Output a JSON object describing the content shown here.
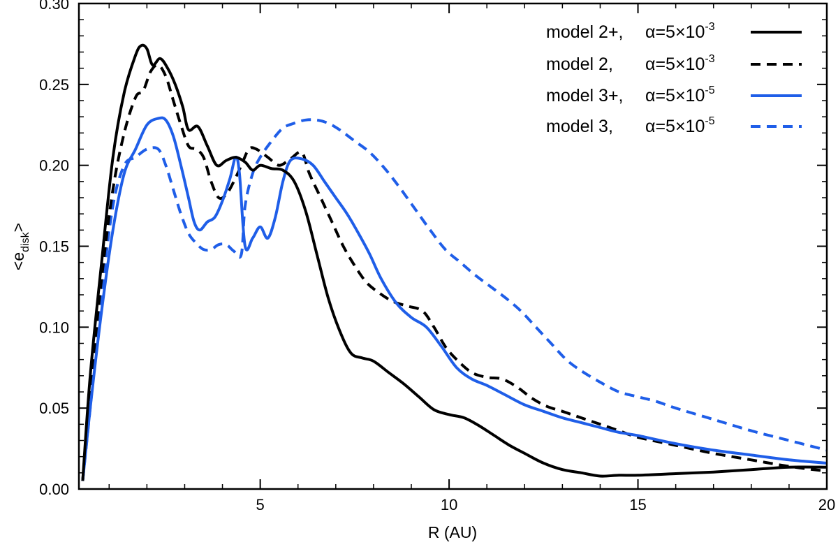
{
  "chart_data": {
    "type": "line",
    "title": "",
    "xlabel": "R (AU)",
    "ylabel_parts": {
      "open": "<e",
      "sub": "disk",
      "close": ">"
    },
    "xlim": [
      0.2,
      20
    ],
    "ylim": [
      0,
      0.3
    ],
    "x_ticks": [
      5,
      10,
      15,
      20
    ],
    "x_tick_labels": [
      "5",
      "10",
      "15",
      "20"
    ],
    "y_ticks": [
      0,
      0.05,
      0.1,
      0.15,
      0.2,
      0.25,
      0.3
    ],
    "y_tick_labels": [
      "0.00",
      "0.05",
      "0.10",
      "0.15",
      "0.20",
      "0.25",
      "0.30"
    ],
    "legend_position": "top-right",
    "series": [
      {
        "name": "model 2+",
        "label": "model 2+,",
        "alpha_text": "α=5×10",
        "alpha_exp": "-3",
        "color": "#000000",
        "style": "solid",
        "x": [
          0.3,
          0.5,
          0.8,
          1.1,
          1.4,
          1.7,
          1.85,
          2.0,
          2.15,
          2.35,
          2.55,
          2.75,
          2.95,
          3.1,
          3.35,
          3.6,
          3.85,
          4.1,
          4.35,
          4.6,
          4.8,
          5.0,
          5.3,
          5.6,
          5.9,
          6.2,
          6.5,
          6.8,
          7.1,
          7.4,
          7.7,
          8.0,
          8.4,
          8.8,
          9.2,
          9.6,
          10.0,
          10.4,
          10.8,
          11.2,
          11.6,
          12.0,
          12.5,
          13.0,
          13.5,
          14.0,
          14.5,
          15.0,
          16.0,
          17.0,
          18.0,
          19.0,
          20.0
        ],
        "y": [
          0.005,
          0.07,
          0.14,
          0.205,
          0.245,
          0.268,
          0.274,
          0.272,
          0.262,
          0.266,
          0.26,
          0.25,
          0.236,
          0.222,
          0.224,
          0.212,
          0.2,
          0.203,
          0.205,
          0.202,
          0.197,
          0.2,
          0.198,
          0.197,
          0.19,
          0.172,
          0.145,
          0.118,
          0.098,
          0.084,
          0.081,
          0.079,
          0.072,
          0.065,
          0.057,
          0.049,
          0.046,
          0.044,
          0.039,
          0.033,
          0.027,
          0.022,
          0.016,
          0.012,
          0.01,
          0.008,
          0.0085,
          0.0085,
          0.0095,
          0.0105,
          0.012,
          0.0135,
          0.0135
        ]
      },
      {
        "name": "model 2",
        "label": "model 2,",
        "alpha_text": "α=5×10",
        "alpha_exp": "-3",
        "color": "#000000",
        "style": "dashed",
        "x": [
          0.3,
          0.5,
          0.8,
          1.1,
          1.4,
          1.7,
          1.9,
          2.1,
          2.3,
          2.5,
          2.7,
          2.9,
          3.1,
          3.3,
          3.5,
          3.7,
          3.9,
          4.1,
          4.3,
          4.5,
          4.7,
          4.9,
          5.2,
          5.5,
          5.8,
          6.1,
          6.3,
          6.6,
          6.9,
          7.2,
          7.5,
          7.8,
          8.1,
          8.5,
          8.9,
          9.3,
          9.6,
          9.9,
          10.2,
          10.6,
          11.0,
          11.4,
          11.8,
          12.2,
          12.6,
          13.0,
          13.5,
          14.0,
          14.5,
          15.0,
          16.0,
          17.0,
          18.0,
          19.0,
          20.0
        ],
        "y": [
          0.005,
          0.06,
          0.13,
          0.185,
          0.22,
          0.242,
          0.246,
          0.258,
          0.262,
          0.255,
          0.24,
          0.225,
          0.212,
          0.21,
          0.205,
          0.19,
          0.18,
          0.182,
          0.19,
          0.2,
          0.21,
          0.21,
          0.205,
          0.2,
          0.204,
          0.208,
          0.195,
          0.18,
          0.165,
          0.15,
          0.138,
          0.128,
          0.122,
          0.116,
          0.113,
          0.11,
          0.1,
          0.088,
          0.08,
          0.072,
          0.069,
          0.068,
          0.063,
          0.056,
          0.051,
          0.048,
          0.044,
          0.04,
          0.036,
          0.032,
          0.027,
          0.022,
          0.018,
          0.014,
          0.011
        ]
      },
      {
        "name": "model 3+",
        "label": "model 3+,",
        "alpha_text": "α=5×10",
        "alpha_exp": "-5",
        "color": "#1f5ee8",
        "style": "solid",
        "x": [
          0.3,
          0.5,
          0.8,
          1.1,
          1.4,
          1.7,
          2.0,
          2.3,
          2.5,
          2.7,
          2.9,
          3.1,
          3.25,
          3.4,
          3.6,
          3.8,
          4.0,
          4.2,
          4.35,
          4.45,
          4.6,
          4.8,
          5.0,
          5.2,
          5.4,
          5.6,
          5.8,
          6.1,
          6.4,
          6.7,
          7.0,
          7.3,
          7.6,
          7.9,
          8.2,
          8.6,
          9.0,
          9.4,
          9.8,
          10.2,
          10.6,
          11.0,
          11.5,
          12.0,
          12.5,
          13.0,
          13.5,
          14.0,
          14.5,
          15.0,
          16.0,
          17.0,
          18.0,
          19.0,
          20.0
        ],
        "y": [
          0.005,
          0.05,
          0.11,
          0.16,
          0.195,
          0.21,
          0.225,
          0.229,
          0.228,
          0.218,
          0.2,
          0.18,
          0.165,
          0.16,
          0.165,
          0.168,
          0.178,
          0.192,
          0.205,
          0.195,
          0.15,
          0.155,
          0.162,
          0.155,
          0.168,
          0.19,
          0.203,
          0.204,
          0.2,
          0.19,
          0.18,
          0.17,
          0.158,
          0.145,
          0.13,
          0.115,
          0.106,
          0.1,
          0.088,
          0.075,
          0.068,
          0.064,
          0.058,
          0.052,
          0.048,
          0.044,
          0.041,
          0.038,
          0.035,
          0.033,
          0.028,
          0.024,
          0.021,
          0.018,
          0.016
        ]
      },
      {
        "name": "model 3",
        "label": "model 3,",
        "alpha_text": "α=5×10",
        "alpha_exp": "-5",
        "color": "#1f5ee8",
        "style": "dashed",
        "x": [
          0.3,
          0.5,
          0.8,
          1.1,
          1.4,
          1.7,
          2.0,
          2.3,
          2.5,
          2.7,
          2.9,
          3.1,
          3.3,
          3.5,
          3.7,
          3.9,
          4.1,
          4.3,
          4.5,
          4.6,
          4.8,
          5.0,
          5.3,
          5.6,
          5.9,
          6.2,
          6.5,
          6.8,
          7.1,
          7.5,
          7.9,
          8.3,
          8.7,
          9.1,
          9.5,
          9.9,
          10.3,
          10.7,
          11.1,
          11.5,
          11.9,
          12.3,
          12.7,
          13.1,
          13.5,
          14.0,
          14.5,
          15.0,
          15.5,
          16.0,
          17.0,
          18.0,
          19.0,
          20.0
        ],
        "y": [
          0.005,
          0.05,
          0.12,
          0.175,
          0.2,
          0.205,
          0.21,
          0.21,
          0.2,
          0.185,
          0.17,
          0.158,
          0.152,
          0.148,
          0.148,
          0.151,
          0.151,
          0.147,
          0.145,
          0.175,
          0.195,
          0.205,
          0.215,
          0.223,
          0.226,
          0.228,
          0.228,
          0.226,
          0.222,
          0.215,
          0.208,
          0.198,
          0.186,
          0.173,
          0.16,
          0.148,
          0.14,
          0.132,
          0.125,
          0.118,
          0.11,
          0.1,
          0.09,
          0.08,
          0.073,
          0.066,
          0.06,
          0.057,
          0.054,
          0.05,
          0.043,
          0.036,
          0.03,
          0.024
        ]
      }
    ]
  }
}
